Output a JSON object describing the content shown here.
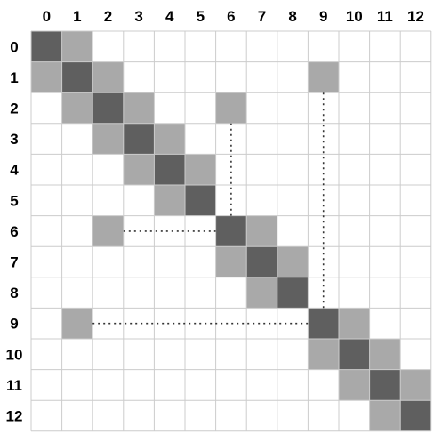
{
  "matrix": {
    "size": 13,
    "column_labels": [
      "0",
      "1",
      "2",
      "3",
      "4",
      "5",
      "6",
      "7",
      "8",
      "9",
      "10",
      "11",
      "12"
    ],
    "row_labels": [
      "0",
      "1",
      "2",
      "3",
      "4",
      "5",
      "6",
      "7",
      "8",
      "9",
      "10",
      "11",
      "12"
    ],
    "colors": {
      "diagonal": "#5f5f5f",
      "neighbor": "#a9a9a9",
      "empty": "#ffffff",
      "grid": "#cccccc",
      "connector": "#333333"
    },
    "diagonal_cells": [
      [
        0,
        0
      ],
      [
        1,
        1
      ],
      [
        2,
        2
      ],
      [
        3,
        3
      ],
      [
        4,
        4
      ],
      [
        5,
        5
      ],
      [
        6,
        6
      ],
      [
        7,
        7
      ],
      [
        8,
        8
      ],
      [
        9,
        9
      ],
      [
        10,
        10
      ],
      [
        11,
        11
      ],
      [
        12,
        12
      ]
    ],
    "neighbor_cells": [
      [
        0,
        1
      ],
      [
        1,
        0
      ],
      [
        1,
        2
      ],
      [
        1,
        9
      ],
      [
        2,
        1
      ],
      [
        2,
        3
      ],
      [
        2,
        6
      ],
      [
        3,
        2
      ],
      [
        3,
        4
      ],
      [
        4,
        3
      ],
      [
        4,
        5
      ],
      [
        5,
        4
      ],
      [
        6,
        2
      ],
      [
        6,
        7
      ],
      [
        7,
        6
      ],
      [
        7,
        8
      ],
      [
        8,
        7
      ],
      [
        9,
        1
      ],
      [
        9,
        10
      ],
      [
        10,
        9
      ],
      [
        10,
        11
      ],
      [
        11,
        10
      ],
      [
        11,
        12
      ],
      [
        12,
        11
      ]
    ],
    "connectors": [
      {
        "from": [
          2,
          6
        ],
        "to": [
          6,
          6
        ]
      },
      {
        "from": [
          6,
          2
        ],
        "to": [
          6,
          6
        ]
      },
      {
        "from": [
          1,
          9
        ],
        "to": [
          9,
          9
        ]
      },
      {
        "from": [
          9,
          1
        ],
        "to": [
          9,
          9
        ]
      }
    ]
  }
}
